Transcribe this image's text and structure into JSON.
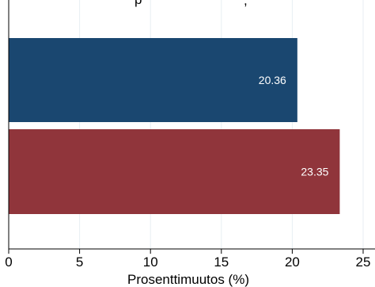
{
  "chart_data": {
    "type": "bar",
    "orientation": "horizontal",
    "title": "p",
    "title_suffix": ",",
    "xlabel": "Prosenttimuutos (%)",
    "xlim": [
      0,
      26
    ],
    "xticks": [
      0,
      5,
      10,
      15,
      20,
      25
    ],
    "tick_labels": [
      "0",
      "5",
      "10",
      "15",
      "20",
      "25"
    ],
    "grid": true,
    "series": [
      {
        "value": 20.36,
        "label": "20.36",
        "color": "#1a4770"
      },
      {
        "value": 23.35,
        "label": "23.35",
        "color": "#90353b"
      }
    ]
  }
}
